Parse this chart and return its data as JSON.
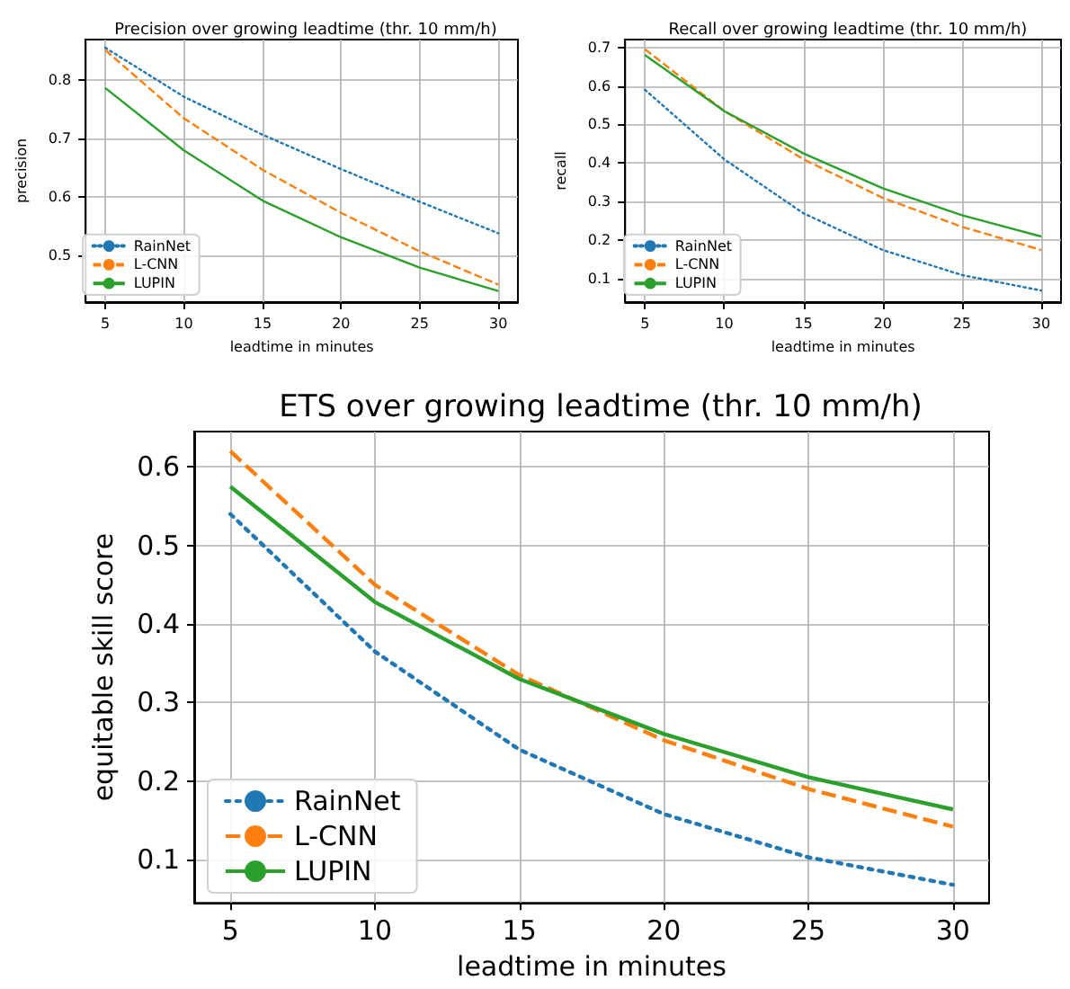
{
  "chart_data": [
    {
      "type": "line",
      "title": "Precision over growing leadtime (thr. 10 mm/h)",
      "xlabel": "leadtime in minutes",
      "ylabel": "precision",
      "x": [
        5,
        10,
        15,
        20,
        25,
        30
      ],
      "xlim": [
        3.75,
        31.25
      ],
      "xticks": [
        5,
        10,
        15,
        20,
        25,
        30
      ],
      "ylim": [
        0.42,
        0.87
      ],
      "yticks": [
        0.5,
        0.6,
        0.7,
        0.8
      ],
      "grid": true,
      "legend": "bottom left",
      "series": [
        {
          "name": "RainNet",
          "color": "#1f77b4",
          "line_style": "dotted",
          "values": [
            0.856,
            0.772,
            0.707,
            0.648,
            0.592,
            0.538
          ]
        },
        {
          "name": "L-CNN",
          "color": "#ff7f0e",
          "line_style": "dashed",
          "values": [
            0.852,
            0.735,
            0.647,
            0.573,
            0.507,
            0.45
          ]
        },
        {
          "name": "LUPIN",
          "color": "#2ca02c",
          "line_style": "solid",
          "values": [
            0.787,
            0.68,
            0.594,
            0.531,
            0.479,
            0.439
          ]
        }
      ]
    },
    {
      "type": "line",
      "title": "Recall over growing leadtime (thr. 10 mm/h)",
      "xlabel": "leadtime in minutes",
      "ylabel": "recall",
      "x": [
        5,
        10,
        15,
        20,
        25,
        30
      ],
      "xlim": [
        3.75,
        31.25
      ],
      "xticks": [
        5,
        10,
        15,
        20,
        25,
        30
      ],
      "ylim": [
        0.04,
        0.72
      ],
      "yticks": [
        0.1,
        0.2,
        0.3,
        0.4,
        0.5,
        0.6,
        0.7
      ],
      "grid": true,
      "legend": "bottom left",
      "series": [
        {
          "name": "RainNet",
          "color": "#1f77b4",
          "line_style": "dotted",
          "values": [
            0.59,
            0.41,
            0.27,
            0.175,
            0.11,
            0.07
          ]
        },
        {
          "name": "L-CNN",
          "color": "#ff7f0e",
          "line_style": "dashed",
          "values": [
            0.695,
            0.535,
            0.41,
            0.31,
            0.235,
            0.175
          ]
        },
        {
          "name": "LUPIN",
          "color": "#2ca02c",
          "line_style": "solid",
          "values": [
            0.68,
            0.535,
            0.425,
            0.335,
            0.265,
            0.21
          ]
        }
      ]
    },
    {
      "type": "line",
      "title": "ETS over growing leadtime (thr. 10 mm/h)",
      "xlabel": "leadtime in minutes",
      "ylabel": "equitable skill score",
      "x": [
        5,
        10,
        15,
        20,
        25,
        30
      ],
      "xlim": [
        3.75,
        31.25
      ],
      "xticks": [
        5,
        10,
        15,
        20,
        25,
        30
      ],
      "ylim": [
        0.045,
        0.645
      ],
      "yticks": [
        0.1,
        0.2,
        0.3,
        0.4,
        0.5,
        0.6
      ],
      "grid": true,
      "legend": "bottom left",
      "series": [
        {
          "name": "RainNet",
          "color": "#1f77b4",
          "line_style": "dotted",
          "values": [
            0.54,
            0.365,
            0.24,
            0.158,
            0.103,
            0.068
          ]
        },
        {
          "name": "L-CNN",
          "color": "#ff7f0e",
          "line_style": "dashed",
          "values": [
            0.62,
            0.45,
            0.335,
            0.252,
            0.19,
            0.142
          ]
        },
        {
          "name": "LUPIN",
          "color": "#2ca02c",
          "line_style": "solid",
          "values": [
            0.575,
            0.428,
            0.33,
            0.26,
            0.205,
            0.164
          ]
        }
      ]
    }
  ]
}
